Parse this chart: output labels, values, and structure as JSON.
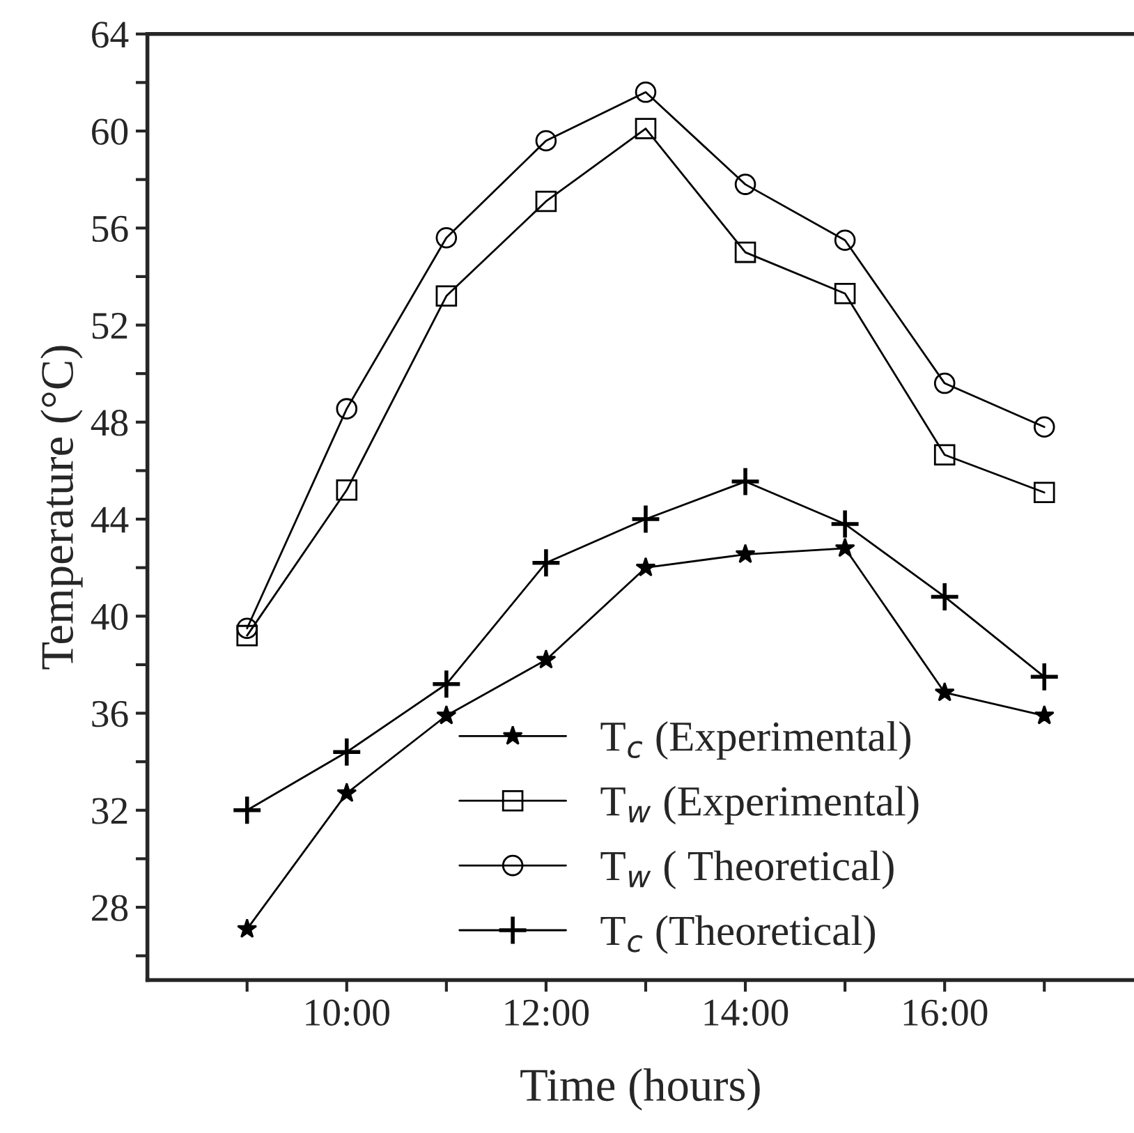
{
  "chart_data": {
    "type": "line",
    "xlabel": "Time (hours)",
    "ylabel": "Temperature (°C)",
    "x": [
      9,
      10,
      11,
      12,
      13,
      14,
      15,
      16,
      17
    ],
    "series": [
      {
        "name": "T$_{c}$ (Experimental)",
        "color": "#000000",
        "marker": "star",
        "values": [
          27.1,
          32.7,
          35.9,
          38.2,
          42.0,
          42.55,
          42.8,
          36.85,
          35.9
        ]
      },
      {
        "name": "T$_{w}$ (Experimental)",
        "color": "#000000",
        "marker": "square",
        "values": [
          39.2,
          45.2,
          53.2,
          57.1,
          60.1,
          55.0,
          53.3,
          46.65,
          45.1
        ]
      },
      {
        "name": "T$_{w}$ ( Theoretical)",
        "color": "#000000",
        "marker": "circle",
        "values": [
          39.5,
          48.55,
          55.6,
          59.6,
          61.6,
          57.8,
          55.5,
          49.6,
          47.8
        ]
      },
      {
        "name": "T$_{c}$ (Theoretical)",
        "color": "#000000",
        "marker": "cross",
        "values": [
          32.0,
          34.4,
          37.2,
          42.2,
          44.0,
          45.55,
          43.8,
          40.8,
          37.5
        ]
      }
    ],
    "xlim": [
      8,
      17.9
    ],
    "xticks": [
      {
        "value": 9,
        "label": null
      },
      {
        "value": 10,
        "label": "10:00"
      },
      {
        "value": 11,
        "label": null
      },
      {
        "value": 12,
        "label": "12:00"
      },
      {
        "value": 13,
        "label": null
      },
      {
        "value": 14,
        "label": "14:00"
      },
      {
        "value": 15,
        "label": null
      },
      {
        "value": 16,
        "label": "16:00"
      },
      {
        "value": 17,
        "label": null
      }
    ],
    "ylim": [
      25,
      64
    ],
    "yticks": [
      {
        "value": 26,
        "label": null
      },
      28,
      {
        "value": 30,
        "label": null
      },
      32,
      {
        "value": 34,
        "label": null
      },
      36,
      {
        "value": 38,
        "label": null
      },
      40,
      {
        "value": 42,
        "label": null
      },
      44,
      {
        "value": 46,
        "label": null
      },
      48,
      {
        "value": 50,
        "label": null
      },
      52,
      {
        "value": 54,
        "label": null
      },
      56,
      {
        "value": 58,
        "label": null
      },
      60,
      {
        "value": 62,
        "label": null
      },
      64
    ],
    "grid": false,
    "legend": "bottom",
    "line_style": "solid"
  }
}
